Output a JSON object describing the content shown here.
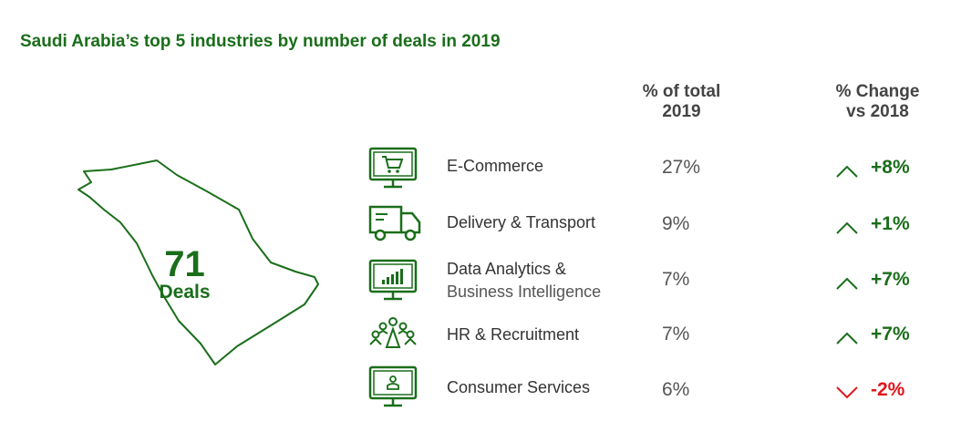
{
  "chart_data": {
    "type": "table",
    "title": "Saudi Arabia’s top 5 industries by number of deals in 2019",
    "total": {
      "number": "71",
      "label": "Deals"
    },
    "columns": [
      "% of total 2019",
      "% Change vs 2018"
    ],
    "column_headers": [
      {
        "line1": "% of total",
        "line2": "2019"
      },
      {
        "line1": "% Change",
        "line2": "vs 2018"
      }
    ],
    "rows": [
      {
        "icon": "monitor-cart-icon",
        "label_line1": "E-Commerce",
        "label_line2": "",
        "share": "27%",
        "change": "+8%",
        "share_value": 27,
        "change_value": 8,
        "direction": "up"
      },
      {
        "icon": "delivery-truck-icon",
        "label_line1": "Delivery & Transport",
        "label_line2": "",
        "share": "9%",
        "change": "+1%",
        "share_value": 9,
        "change_value": 1,
        "direction": "up"
      },
      {
        "icon": "monitor-bar-chart-icon",
        "label_line1": "Data Analytics &",
        "label_line2": "Business Intelligence",
        "share": "7%",
        "change": "+7%",
        "share_value": 7,
        "change_value": 7,
        "direction": "up"
      },
      {
        "icon": "people-group-icon",
        "label_line1": "HR & Recruitment",
        "label_line2": "",
        "share": "7%",
        "change": "+7%",
        "share_value": 7,
        "change_value": 7,
        "direction": "up"
      },
      {
        "icon": "monitor-person-icon",
        "label_line1": "Consumer Services",
        "label_line2": "",
        "share": "6%",
        "change": "-2%",
        "share_value": 6,
        "change_value": -2,
        "direction": "down"
      }
    ]
  },
  "map_icon": "saudi-arabia-map-outline",
  "colors": {
    "green": "#1a6e1a",
    "red": "#e0161b",
    "text": "#333333"
  }
}
